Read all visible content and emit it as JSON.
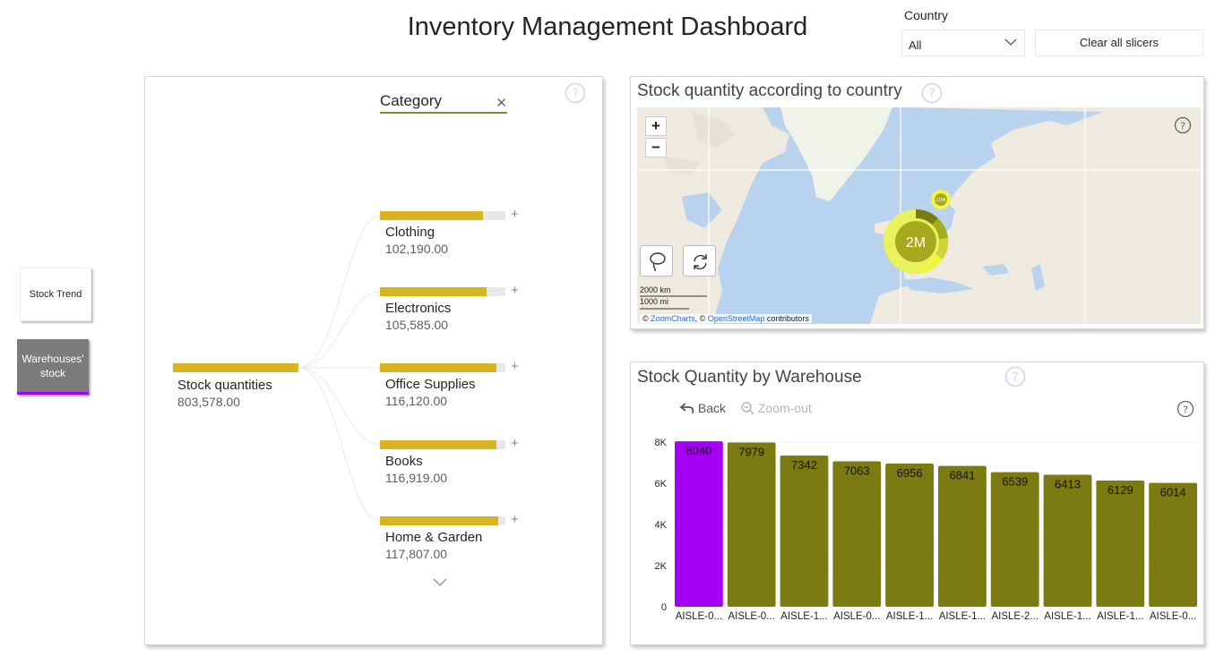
{
  "title": "Inventory Management Dashboard",
  "slicer": {
    "label": "Country",
    "selected": "All",
    "clear_label": "Clear all slicers"
  },
  "nav": {
    "stock_trend": "Stock Trend",
    "warehouses_line1": "Warehouses'",
    "warehouses_line2": "stock"
  },
  "tree": {
    "header": "Category",
    "root": {
      "label": "Stock quantities",
      "value": "803,578.00",
      "fraction": 1.0
    },
    "children": [
      {
        "label": "Clothing",
        "value": "102,190.00",
        "fraction": 0.82
      },
      {
        "label": "Electronics",
        "value": "105,585.00",
        "fraction": 0.85
      },
      {
        "label": "Office Supplies",
        "value": "116,120.00",
        "fraction": 0.93
      },
      {
        "label": "Books",
        "value": "116,919.00",
        "fraction": 0.93
      },
      {
        "label": "Home & Garden",
        "value": "117,807.00",
        "fraction": 0.94
      }
    ]
  },
  "map": {
    "title": "Stock quantity according to country",
    "zoom_in": "+",
    "zoom_out": "−",
    "cluster_label": "2M",
    "small_cluster_label": "210K",
    "scale_km": "2000 km",
    "scale_mi": "1000 mi",
    "credit_prefix": "©",
    "credit_zoom": "ZoomCharts",
    "credit_sep": ", ©",
    "credit_osm": "OpenStreetMap",
    "credit_suffix": "contributors",
    "land_color": "#efeae0",
    "water_color": "#b9d3ef"
  },
  "bar_chart": {
    "title": "Stock Quantity by Warehouse",
    "back_label": "Back",
    "zoomout_label": "Zoom-out"
  },
  "chart_data": {
    "type": "bar",
    "categories": [
      "AISLE-0...",
      "AISLE-0...",
      "AISLE-1...",
      "AISLE-0...",
      "AISLE-1...",
      "AISLE-1...",
      "AISLE-2...",
      "AISLE-1...",
      "AISLE-1...",
      "AISLE-0..."
    ],
    "values": [
      8040,
      7979,
      7342,
      7063,
      6956,
      6841,
      6539,
      6413,
      6129,
      6014
    ],
    "ylim": [
      0,
      8000
    ],
    "yticks": [
      "0",
      "2K",
      "4K",
      "6K",
      "8K"
    ],
    "highlight_index": 0,
    "highlight_color": "#a500f5",
    "bar_color": "#7b7b11",
    "grid": true
  }
}
